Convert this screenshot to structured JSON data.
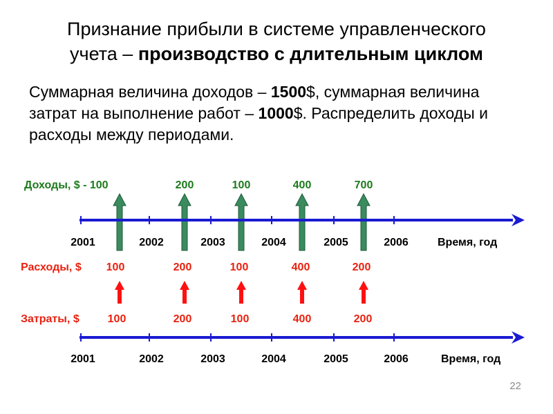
{
  "title": {
    "line1": "Признание прибыли в системе управленческого",
    "line2_plain": "учета – ",
    "line2_bold": "производство с длительным циклом"
  },
  "description": {
    "p1": "Суммарная величина доходов – ",
    "v1": "1500",
    "p2": "$, суммарная величина затрат на выполнение работ – ",
    "v2": "1000",
    "p3": "$. Распределить доходы и расходы между периодами."
  },
  "colors": {
    "axis": "#1a1ad2",
    "income": "#1c7a1c",
    "income_arrow": "#3a8b5e",
    "expense": "#e8210f",
    "expense_arrow": "#ff1010",
    "text": "#000000"
  },
  "timeline1": {
    "years": [
      "2001",
      "2002",
      "2003",
      "2004",
      "2005",
      "2006"
    ],
    "axis_label": "Время, год"
  },
  "income": {
    "label": "Доходы, $ - ",
    "values": [
      "100",
      "200",
      "100",
      "400",
      "700"
    ]
  },
  "expenses": {
    "label": "Расходы, $",
    "values": [
      "100",
      "200",
      "100",
      "400",
      "200"
    ]
  },
  "costs": {
    "label": "Затраты, $",
    "values": [
      "100",
      "200",
      "100",
      "400",
      "200"
    ]
  },
  "timeline2": {
    "years": [
      "2001",
      "2002",
      "2003",
      "2004",
      "2005",
      "2006"
    ],
    "axis_label": "Время, год"
  },
  "page_number": "22"
}
